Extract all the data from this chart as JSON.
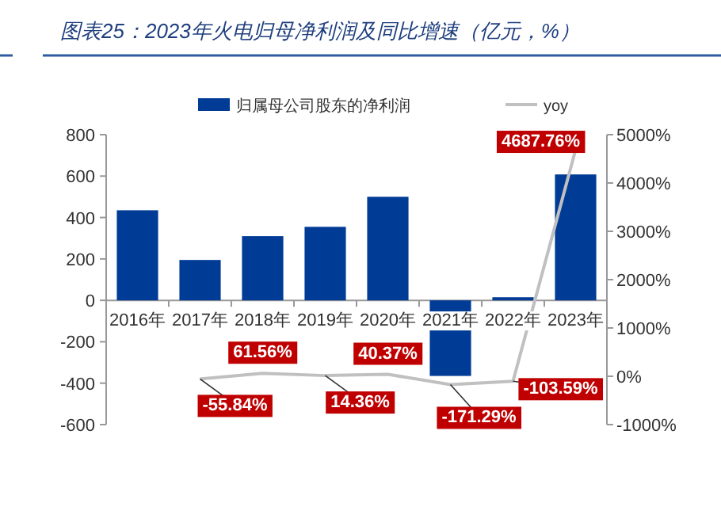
{
  "chart_data": {
    "type": "bar",
    "title": "图表25：2023年火电归母净利润及同比增速（亿元，%）",
    "categories": [
      "2016年",
      "2017年",
      "2018年",
      "2019年",
      "2020年",
      "2021年",
      "2022年",
      "2023年"
    ],
    "series": [
      {
        "name": "归属母公司股东的净利润",
        "color": "#003b96",
        "values": [
          435,
          195,
          310,
          355,
          500,
          -365,
          15,
          608
        ]
      },
      {
        "name": "yoy",
        "type": "line",
        "axis": "y2",
        "color": "#c0c0c0",
        "values": [
          null,
          -55.84,
          61.56,
          14.36,
          40.37,
          -171.29,
          -103.59,
          4687.76
        ],
        "value_labels": [
          null,
          "-55.84%",
          "61.56%",
          "14.36%",
          "40.37%",
          "-171.29%",
          "-103.59%",
          "4687.76%"
        ]
      }
    ],
    "ylim": [
      -600,
      800
    ],
    "yticks": [
      -600,
      -400,
      -200,
      0,
      200,
      400,
      600,
      800
    ],
    "y2lim": [
      -1000,
      5000
    ],
    "y2ticks": [
      {
        "value": -1000,
        "label": "-1000%"
      },
      {
        "value": 0,
        "label": "0%"
      },
      {
        "value": 1000,
        "label": "1000%"
      },
      {
        "value": 2000,
        "label": "2000%"
      },
      {
        "value": 3000,
        "label": "3000%"
      },
      {
        "value": 4000,
        "label": "4000%"
      },
      {
        "value": 5000,
        "label": "5000%"
      }
    ],
    "legend": "top",
    "grid": false
  }
}
